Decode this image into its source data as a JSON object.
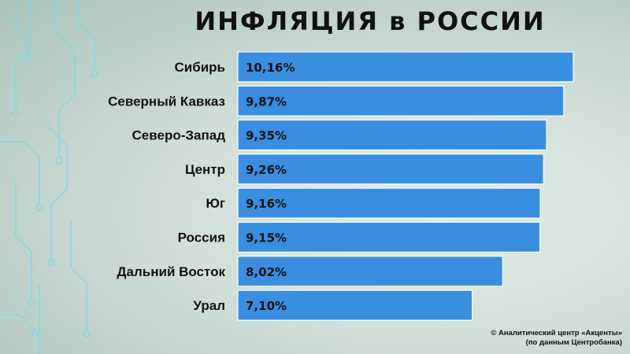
{
  "title": "ИНФЛЯЦИЯ  в  РОССИИ",
  "chart_data": {
    "type": "bar",
    "orientation": "horizontal",
    "title": "ИНФЛЯЦИЯ  в  РОССИИ",
    "categories": [
      "Сибирь",
      "Северный Кавказ",
      "Северо-Запад",
      "Центр",
      "Юг",
      "Россия",
      "Дальний Восток",
      "Урал"
    ],
    "values": [
      10.16,
      9.87,
      9.35,
      9.26,
      9.16,
      9.15,
      8.02,
      7.1
    ],
    "labels": [
      "10,16%",
      "9,87%",
      "9,35%",
      "9,26%",
      "9,16%",
      "9,15%",
      "8,02%",
      "7,10%"
    ],
    "xlim": [
      0,
      10.16
    ],
    "bar_color": "#3a8ee0",
    "grid": false,
    "legend": "none"
  },
  "footer": {
    "line1": "©  Аналитический центр «Акценты»",
    "line2": "(по данным Центробанка)"
  }
}
